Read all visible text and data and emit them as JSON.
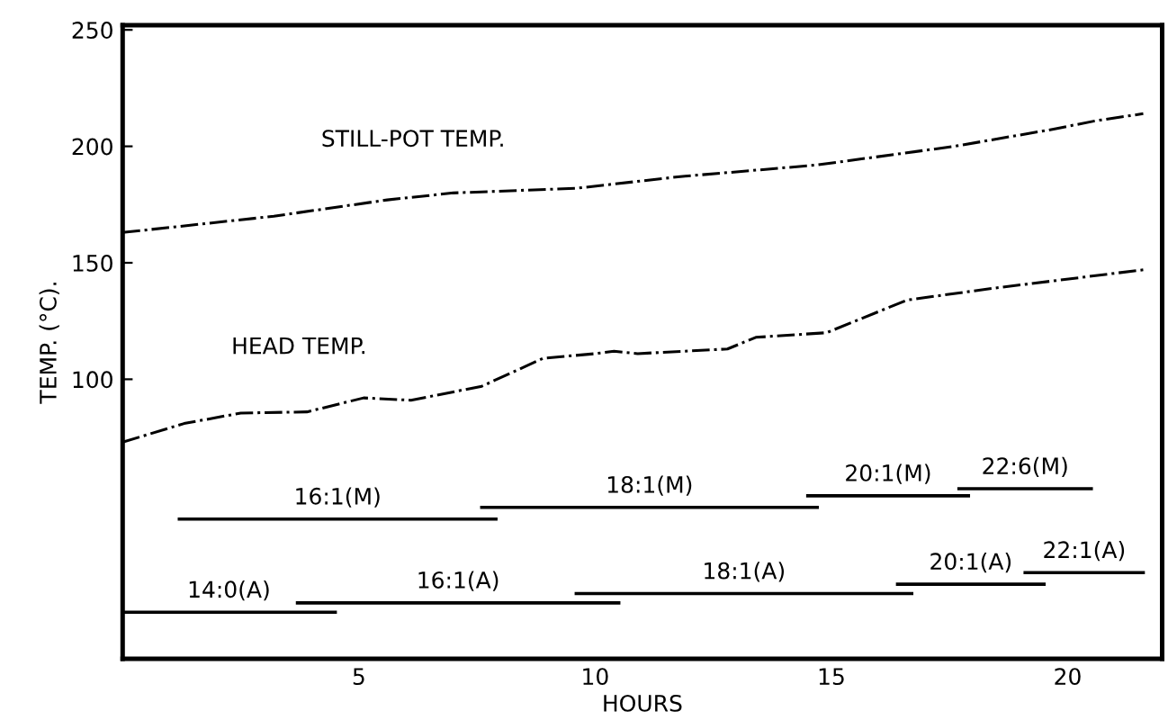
{
  "chart_data": {
    "type": "line",
    "xlabel": "HOURS",
    "ylabel": "TEMP. (°C).",
    "xlim": [
      0,
      22
    ],
    "ylim": [
      -20,
      252
    ],
    "xticks": [
      5,
      10,
      15,
      20
    ],
    "yticks": [
      100,
      150,
      200,
      250
    ],
    "grid": false,
    "legend": false,
    "marker": "none",
    "series": [
      {
        "name": "STILL-POT TEMP.",
        "color": "#000000",
        "line_style": "dashed",
        "x": [
          0,
          3.2,
          5.6,
          7.0,
          9.6,
          11.8,
          14.7,
          17.6,
          19.6,
          20.6,
          21.6
        ],
        "values": [
          163,
          170,
          177,
          180,
          182,
          187,
          192,
          200,
          207,
          211,
          214
        ]
      },
      {
        "name": "HEAD TEMP.",
        "color": "#000000",
        "line_style": "dashed",
        "x": [
          0,
          1.3,
          2.5,
          3.9,
          5.1,
          6.1,
          7.6,
          8.9,
          10,
          10.4,
          10.9,
          12.8,
          13.4,
          14.9,
          16.6,
          18.4,
          21.6
        ],
        "values": [
          73,
          81,
          85.5,
          86,
          92,
          91,
          97,
          109,
          111,
          112,
          111,
          113,
          118,
          120,
          134,
          139,
          147
        ]
      },
      {
        "name": "16:1(M)",
        "color": "#000000",
        "line_style": "solid",
        "x": [
          1.2,
          7.9
        ],
        "values": [
          40,
          40
        ]
      },
      {
        "name": "18:1(M)",
        "color": "#000000",
        "line_style": "solid",
        "x": [
          7.6,
          14.7
        ],
        "values": [
          45,
          45
        ]
      },
      {
        "name": "20:1(M)",
        "color": "#000000",
        "line_style": "solid",
        "x": [
          14.5,
          17.9
        ],
        "values": [
          50,
          50
        ]
      },
      {
        "name": "22:6(M)",
        "color": "#000000",
        "line_style": "solid",
        "x": [
          17.7,
          20.5
        ],
        "values": [
          53,
          53
        ]
      },
      {
        "name": "14:0(A)",
        "color": "#000000",
        "line_style": "solid",
        "x": [
          0,
          4.5
        ],
        "values": [
          0,
          0
        ]
      },
      {
        "name": "16:1(A)",
        "color": "#000000",
        "line_style": "solid",
        "x": [
          3.7,
          10.5
        ],
        "values": [
          4,
          4
        ]
      },
      {
        "name": "18:1(A)",
        "color": "#000000",
        "line_style": "solid",
        "x": [
          9.6,
          16.7
        ],
        "values": [
          8,
          8
        ]
      },
      {
        "name": "20:1(A)",
        "color": "#000000",
        "line_style": "solid",
        "x": [
          16.4,
          19.5
        ],
        "values": [
          12,
          12
        ]
      },
      {
        "name": "22:1(A)",
        "color": "#000000",
        "line_style": "solid",
        "x": [
          19.1,
          21.6
        ],
        "values": [
          17,
          17
        ]
      }
    ]
  }
}
